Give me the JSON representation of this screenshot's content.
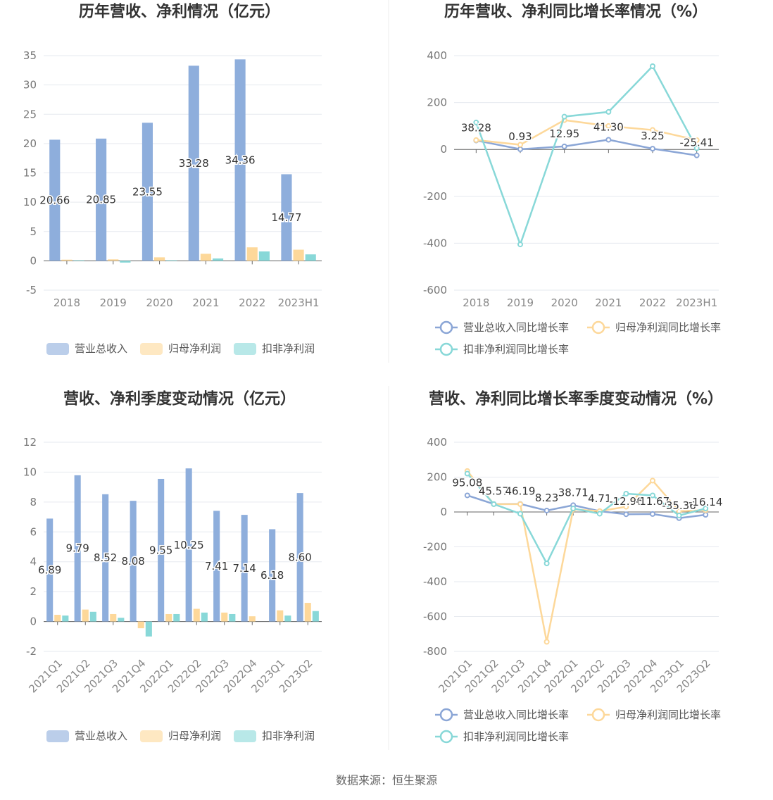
{
  "chart_data": [
    {
      "type": "bar",
      "title": "历年营收、净利情况（亿元）",
      "categories": [
        "2018",
        "2019",
        "2020",
        "2021",
        "2022",
        "2023H1"
      ],
      "ylim": [
        -5,
        35
      ],
      "yticks": [
        -5,
        0,
        5,
        10,
        15,
        20,
        25,
        30,
        35
      ],
      "grid": true,
      "series": [
        {
          "name": "营业总收入",
          "color": "#8eaedc",
          "values": [
            20.66,
            20.85,
            23.55,
            33.28,
            34.36,
            14.77
          ]
        },
        {
          "name": "归母净利润",
          "color": "#fdd89a",
          "values": [
            0.2,
            0.25,
            0.6,
            1.2,
            2.3,
            1.9
          ]
        },
        {
          "name": "扣非净利润",
          "color": "#88d8d8",
          "values": [
            0.1,
            -0.3,
            0.1,
            0.4,
            1.6,
            1.1
          ]
        }
      ]
    },
    {
      "type": "line",
      "title": "历年营收、净利同比增长率情况（%）",
      "categories": [
        "2018",
        "2019",
        "2020",
        "2021",
        "2022",
        "2023H1"
      ],
      "ylim": [
        -600,
        400
      ],
      "yticks": [
        -600,
        -400,
        -200,
        0,
        200,
        400
      ],
      "grid": true,
      "series": [
        {
          "name": "营业总收入同比增长率",
          "color": "#8ba6d6",
          "values": [
            38.28,
            0.93,
            12.95,
            41.3,
            3.25,
            -25.41
          ],
          "value_labels": [
            "38.28",
            "0.93",
            "12.95",
            "41.30",
            "3.25",
            "-25.41"
          ]
        },
        {
          "name": "归母净利润同比增长率",
          "color": "#fdd89a",
          "values": [
            40,
            20,
            125,
            100,
            83,
            40
          ]
        },
        {
          "name": "扣非净利润同比增长率",
          "color": "#88d8d8",
          "values": [
            115,
            -405,
            140,
            160,
            355,
            5
          ]
        }
      ]
    },
    {
      "type": "bar",
      "title": "营收、净利季度变动情况（亿元）",
      "categories": [
        "2021Q1",
        "2021Q2",
        "2021Q3",
        "2021Q4",
        "2022Q1",
        "2022Q2",
        "2022Q3",
        "2022Q4",
        "2023Q1",
        "2023Q2"
      ],
      "ylim": [
        -2,
        12
      ],
      "yticks": [
        -2,
        0,
        2,
        4,
        6,
        8,
        10,
        12
      ],
      "grid": true,
      "series": [
        {
          "name": "营业总收入",
          "color": "#8eaedc",
          "values": [
            6.89,
            9.79,
            8.52,
            8.08,
            9.55,
            10.25,
            7.41,
            7.14,
            6.18,
            8.6
          ],
          "value_labels": [
            "6.89",
            "9.79",
            "8.52",
            "8.08",
            "9.55",
            "10.25",
            "7.41",
            "7.14",
            "6.18",
            "8.60"
          ]
        },
        {
          "name": "归母净利润",
          "color": "#fdd89a",
          "values": [
            0.45,
            0.8,
            0.5,
            -0.45,
            0.5,
            0.85,
            0.6,
            0.35,
            0.75,
            1.25
          ]
        },
        {
          "name": "扣非净利润",
          "color": "#88d8d8",
          "values": [
            0.4,
            0.65,
            0.25,
            -1.0,
            0.5,
            0.6,
            0.5,
            0,
            0.4,
            0.7
          ]
        }
      ]
    },
    {
      "type": "line",
      "title": "营收、净利同比增长率季度变动情况（%）",
      "categories": [
        "2021Q1",
        "2021Q2",
        "2021Q3",
        "2021Q4",
        "2022Q1",
        "2022Q2",
        "2022Q3",
        "2022Q4",
        "2023Q1",
        "2023Q2"
      ],
      "ylim": [
        -800,
        400
      ],
      "yticks": [
        -800,
        -600,
        -400,
        -200,
        0,
        200,
        400
      ],
      "grid": true,
      "series": [
        {
          "name": "营业总收入同比增长率",
          "color": "#8ba6d6",
          "values": [
            95.08,
            45.57,
            46.19,
            8.23,
            38.71,
            4.71,
            -12.96,
            -11.67,
            -35.36,
            -16.14
          ]
        },
        {
          "name": "归母净利润同比增长率",
          "color": "#fdd89a",
          "values": [
            235,
            45,
            45,
            -745,
            15,
            5,
            30,
            180,
            5,
            10
          ]
        },
        {
          "name": "扣非净利润同比增长率",
          "color": "#88d8d8",
          "values": [
            220,
            45,
            -10,
            -295,
            20,
            -10,
            105,
            95,
            -20,
            20
          ]
        }
      ]
    }
  ],
  "source": "数据来源：恒生聚源"
}
